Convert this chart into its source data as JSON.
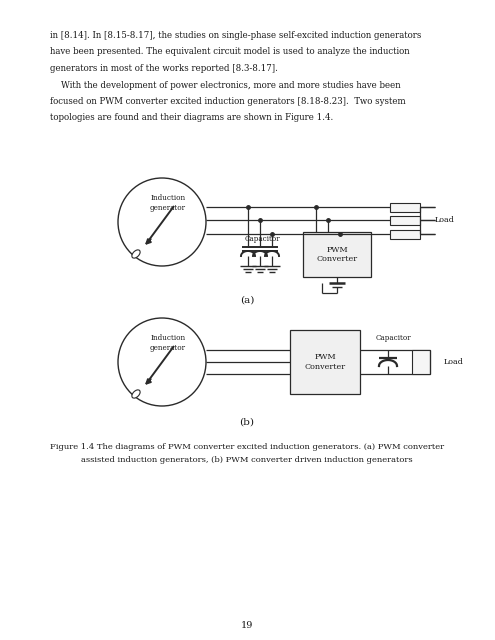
{
  "page_text_lines": [
    [
      "in [8.14]. In [8.15-8.17], the studies on single-phase self-excited induction generators",
      false
    ],
    [
      "have been presented. The equivalent circuit model is used to analyze the induction",
      false
    ],
    [
      "generators in most of the works reported [8.3-8.17].",
      false
    ],
    [
      "    With the development of power electronics, more and more studies have been",
      false
    ],
    [
      "focused on PWM converter excited induction generators [8.18-8.23].  Two system",
      false
    ],
    [
      "topologies are found and their diagrams are shown in Figure 1.4.",
      false
    ]
  ],
  "label_a": "(a)",
  "label_b": "(b)",
  "caption_line1": "Figure 1.4 The diagrams of PWM converter excited induction generators. (a) PWM converter",
  "caption_line2": "assisted induction generators, (b) PWM converter driven induction generators",
  "page_number": "19",
  "bg_color": "#ffffff",
  "dark": "#2a2a2a",
  "gray": "#aaaaaa",
  "lightgray": "#e0e0e0",
  "text_color": "#1a1a1a"
}
